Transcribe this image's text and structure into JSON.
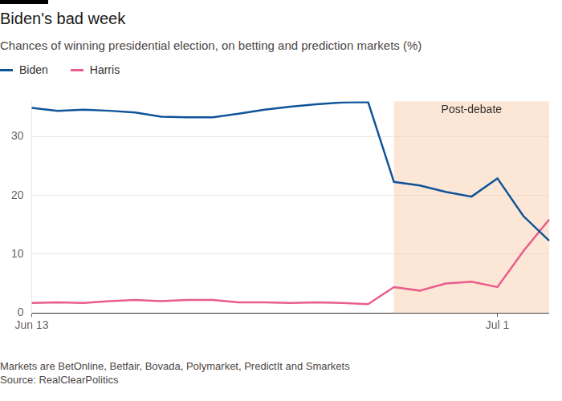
{
  "chart_data": {
    "type": "line",
    "title": "Biden's bad week",
    "subtitle": "Chances of winning presidential election, on betting and prediction markets (%)",
    "categories": [
      "Jun 13",
      null,
      null,
      null,
      null,
      null,
      null,
      null,
      null,
      null,
      null,
      null,
      null,
      null,
      null,
      null,
      null,
      null,
      "Jul 1",
      null,
      null
    ],
    "series": [
      {
        "name": "Biden",
        "color": "#0f5499",
        "values": [
          34.9,
          34.4,
          34.6,
          34.4,
          34.1,
          33.4,
          33.3,
          33.3,
          33.9,
          34.6,
          35.1,
          35.5,
          35.8,
          35.9,
          22.3,
          21.7,
          20.6,
          19.8,
          22.9,
          16.5,
          12.3
        ]
      },
      {
        "name": "Harris",
        "color": "#e95d8c",
        "values": [
          1.7,
          1.8,
          1.7,
          2.0,
          2.2,
          2.0,
          2.2,
          2.2,
          1.8,
          1.8,
          1.7,
          1.8,
          1.7,
          1.5,
          4.4,
          3.8,
          5.0,
          5.3,
          4.4,
          10.5,
          15.9
        ]
      }
    ],
    "ylim": [
      0,
      36
    ],
    "yticks": [
      0,
      10,
      20,
      30
    ],
    "grid": true,
    "legend": "top-left",
    "annotations": [
      {
        "text": "Post-debate",
        "from": 14,
        "to": 20
      }
    ],
    "notes": [
      "Markets are BetOnline, Betfair, Bovada, Polymarket, PredictIt and Smarkets",
      "Source: RealClearPolitics"
    ]
  }
}
